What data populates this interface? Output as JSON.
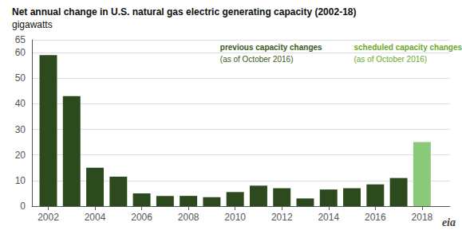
{
  "chart_data": {
    "type": "bar",
    "title": "Net annual change in U.S. natural gas electric generating capacity (2002-18)",
    "subtitle": "gigawatts",
    "x": [
      2002,
      2003,
      2004,
      2005,
      2006,
      2007,
      2008,
      2009,
      2010,
      2011,
      2012,
      2013,
      2014,
      2015,
      2016,
      2017,
      2018
    ],
    "values": [
      59.0,
      43.0,
      15.0,
      11.5,
      5.0,
      4.0,
      4.0,
      3.5,
      5.5,
      8.0,
      7.0,
      3.0,
      6.5,
      7.0,
      8.5,
      11.0,
      25.0
    ],
    "colors": [
      "#2d4a1e",
      "#2d4a1e",
      "#2d4a1e",
      "#2d4a1e",
      "#2d4a1e",
      "#2d4a1e",
      "#2d4a1e",
      "#2d4a1e",
      "#2d4a1e",
      "#2d4a1e",
      "#2d4a1e",
      "#2d4a1e",
      "#2d4a1e",
      "#2d4a1e",
      "#2d4a1e",
      "#2d4a1e",
      "#8ac97a"
    ],
    "xlim": [
      2001.3,
      2019.2
    ],
    "xticks": [
      2002,
      2004,
      2006,
      2008,
      2010,
      2012,
      2014,
      2016,
      2018
    ],
    "ylim": [
      0,
      65
    ],
    "yticks": [
      0,
      10,
      20,
      30,
      40,
      50,
      60
    ],
    "grid": true,
    "annotations": [
      {
        "text": "previous capacity changes",
        "color": "#3a5c20"
      },
      {
        "text": "(as of October 2016)",
        "color": "#3a5c20"
      },
      {
        "text": "scheduled capacity changes",
        "color": "#6aaa2a"
      },
      {
        "text": "(as of October 2016)",
        "color": "#6aaa2a"
      },
      {
        "text": "eia"
      }
    ]
  }
}
